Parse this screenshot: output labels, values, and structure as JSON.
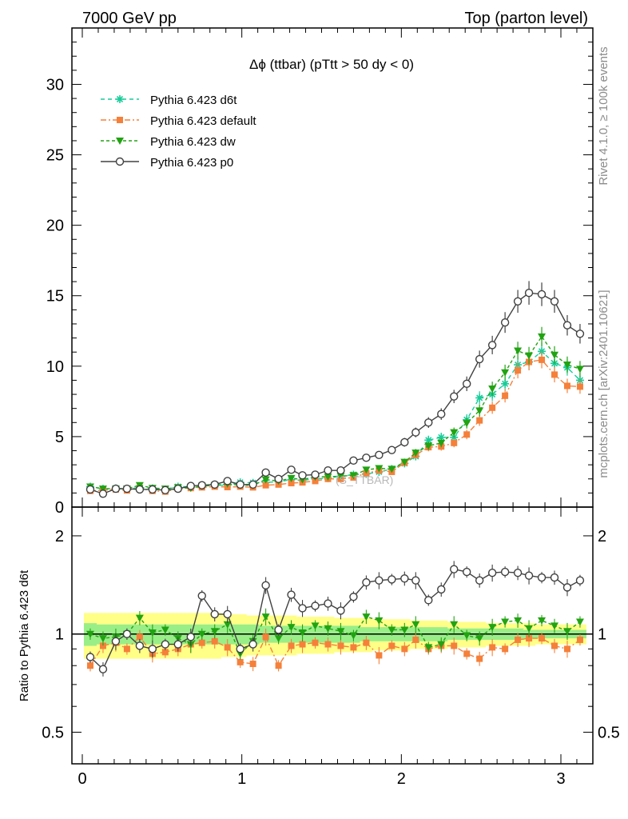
{
  "header": {
    "left": "7000 GeV pp",
    "right": "Top (parton level)"
  },
  "side_labels": {
    "rivet": "Rivet 4.1.0, ≥ 100k events",
    "mcplots": "mcplots.cern.ch [arXiv:2401.10621]"
  },
  "watermark": "(S_TTBAR)",
  "chart_data": {
    "type": "line",
    "title": "Δϕ (ttbar) (pTtt > 50 dy < 0)",
    "xlabel": "",
    "ylabel": "",
    "xlim": [
      -0.05,
      3.2
    ],
    "ylim": [
      0,
      34
    ],
    "x_ticks": [
      "0",
      "1",
      "2",
      "3"
    ],
    "y_ticks": [
      "0",
      "5",
      "10",
      "15",
      "20",
      "25",
      "30"
    ],
    "legend_position": "top-left",
    "x": [
      0.05,
      0.13,
      0.21,
      0.28,
      0.36,
      0.44,
      0.52,
      0.6,
      0.68,
      0.75,
      0.83,
      0.91,
      0.99,
      1.07,
      1.15,
      1.23,
      1.31,
      1.38,
      1.46,
      1.54,
      1.62,
      1.7,
      1.78,
      1.86,
      1.94,
      2.02,
      2.09,
      2.17,
      2.25,
      2.33,
      2.41,
      2.49,
      2.57,
      2.65,
      2.73,
      2.8,
      2.88,
      2.96,
      3.04,
      3.12
    ],
    "series": [
      {
        "name": "Pythia 6.423 d6t",
        "color": "#19cc99",
        "marker": "star",
        "dash": "5,4",
        "values": [
          1.45,
          1.3,
          1.33,
          1.3,
          1.38,
          1.33,
          1.25,
          1.45,
          1.45,
          1.48,
          1.55,
          1.55,
          1.75,
          1.72,
          1.75,
          1.8,
          1.95,
          1.9,
          2.0,
          2.05,
          2.2,
          2.3,
          2.35,
          2.5,
          2.7,
          3.1,
          3.6,
          4.75,
          4.95,
          4.95,
          6.2,
          7.75,
          8.0,
          8.75,
          10.1,
          10.3,
          11.05,
          10.2,
          9.9,
          9.0
        ]
      },
      {
        "name": "Pythia 6.423 default",
        "color": "#f5803a",
        "marker": "square",
        "dash": "7,3,2,3",
        "values": [
          1.15,
          1.2,
          1.25,
          1.18,
          1.35,
          1.15,
          1.1,
          1.3,
          1.35,
          1.4,
          1.45,
          1.42,
          1.45,
          1.4,
          1.55,
          1.6,
          1.7,
          1.75,
          1.85,
          2.0,
          2.0,
          2.1,
          2.4,
          2.6,
          2.5,
          3.15,
          3.7,
          4.25,
          4.3,
          4.55,
          5.15,
          6.15,
          7.05,
          7.9,
          9.7,
          10.3,
          10.45,
          9.4,
          8.6,
          8.55
        ]
      },
      {
        "name": "Pythia 6.423 dw",
        "color": "#22a312",
        "marker": "triangle-down",
        "dash": "4,3",
        "values": [
          1.45,
          1.3,
          1.3,
          1.3,
          1.55,
          1.35,
          1.3,
          1.4,
          1.35,
          1.5,
          1.55,
          1.65,
          1.55,
          1.55,
          1.95,
          1.85,
          2.05,
          1.95,
          2.15,
          2.15,
          2.2,
          2.25,
          2.65,
          2.75,
          2.7,
          3.2,
          3.85,
          4.35,
          4.55,
          5.3,
          5.95,
          6.85,
          8.4,
          9.55,
          11.1,
          10.75,
          12.1,
          10.8,
          10.1,
          9.8
        ]
      },
      {
        "name": "Pythia 6.423 p0",
        "color": "#404040",
        "marker": "circle-open",
        "dash": "",
        "values": [
          1.25,
          0.95,
          1.3,
          1.3,
          1.25,
          1.25,
          1.2,
          1.3,
          1.5,
          1.55,
          1.6,
          1.85,
          1.6,
          1.6,
          2.45,
          2.0,
          2.65,
          2.25,
          2.3,
          2.6,
          2.6,
          3.3,
          3.5,
          3.7,
          4.05,
          4.6,
          5.3,
          6.0,
          6.6,
          7.85,
          8.75,
          10.5,
          11.5,
          13.1,
          14.6,
          15.2,
          15.1,
          14.6,
          12.9,
          12.3
        ]
      }
    ],
    "ratio": {
      "ylabel": "Ratio to Pythia 6.423 d6t",
      "ylim": [
        0.4,
        2.45
      ],
      "y_ticks": [
        "0.5",
        "1",
        "2"
      ],
      "band_inner": [
        0.92,
        0.93,
        0.93,
        0.93,
        0.93,
        0.93,
        0.93,
        0.93,
        0.93,
        0.93,
        0.93,
        0.93,
        0.93,
        0.93,
        0.94,
        0.94,
        0.94,
        0.94,
        0.94,
        0.94,
        0.94,
        0.94,
        0.95,
        0.95,
        0.95,
        0.95,
        0.95,
        0.95,
        0.95,
        0.96,
        0.96,
        0.96,
        0.96,
        0.96,
        0.96,
        0.97,
        0.97,
        0.97,
        0.97,
        0.97
      ],
      "band_outer": [
        0.84,
        0.84,
        0.84,
        0.84,
        0.84,
        0.84,
        0.84,
        0.84,
        0.84,
        0.84,
        0.84,
        0.85,
        0.85,
        0.86,
        0.86,
        0.86,
        0.86,
        0.87,
        0.87,
        0.87,
        0.88,
        0.88,
        0.88,
        0.89,
        0.89,
        0.89,
        0.9,
        0.9,
        0.9,
        0.91,
        0.91,
        0.91,
        0.92,
        0.92,
        0.92,
        0.92,
        0.93,
        0.93,
        0.93,
        0.93
      ],
      "series": [
        {
          "name": "Pythia 6.423 default",
          "values": [
            0.8,
            0.92,
            0.94,
            0.9,
            0.98,
            0.87,
            0.88,
            0.9,
            0.93,
            0.94,
            0.95,
            0.91,
            0.82,
            0.81,
            0.98,
            0.8,
            0.92,
            0.93,
            0.94,
            0.93,
            0.92,
            0.91,
            0.94,
            0.86,
            0.92,
            0.9,
            0.96,
            0.9,
            0.92,
            0.92,
            0.87,
            0.84,
            0.91,
            0.9,
            0.96,
            0.97,
            0.97,
            0.92,
            0.9,
            0.96
          ]
        },
        {
          "name": "Pythia 6.423 dw",
          "values": [
            1.0,
            0.97,
            0.98,
            1.0,
            1.12,
            1.01,
            1.03,
            0.97,
            0.93,
            1.0,
            1.02,
            1.07,
            0.87,
            0.95,
            1.13,
            0.97,
            1.05,
            1.01,
            1.06,
            1.04,
            1.02,
            0.99,
            1.13,
            1.1,
            1.03,
            1.03,
            1.07,
            0.91,
            0.93,
            1.07,
            0.99,
            0.97,
            1.05,
            1.09,
            1.1,
            1.04,
            1.1,
            1.06,
            1.02,
            1.09
          ]
        },
        {
          "name": "Pythia 6.423 p0",
          "values": [
            0.85,
            0.78,
            0.95,
            1.0,
            0.92,
            0.9,
            0.93,
            0.93,
            0.98,
            1.31,
            1.15,
            1.15,
            0.9,
            0.93,
            1.41,
            1.03,
            1.32,
            1.2,
            1.22,
            1.24,
            1.18,
            1.3,
            1.44,
            1.46,
            1.47,
            1.48,
            1.46,
            1.27,
            1.37,
            1.58,
            1.55,
            1.46,
            1.54,
            1.55,
            1.54,
            1.51,
            1.49,
            1.49,
            1.39,
            1.46
          ]
        }
      ]
    }
  }
}
